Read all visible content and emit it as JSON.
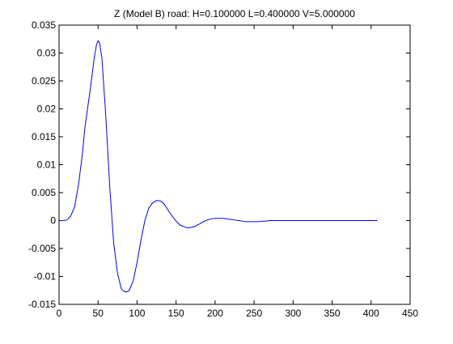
{
  "chart_data": {
    "type": "line",
    "title": "Z (Model B) road: H=0.100000 L=0.400000 V=5.000000",
    "xlabel": "",
    "ylabel": "",
    "xlim": [
      0,
      450
    ],
    "ylim": [
      -0.015,
      0.035
    ],
    "xticks": [
      0,
      50,
      100,
      150,
      200,
      250,
      300,
      350,
      400,
      450
    ],
    "yticks": [
      -0.015,
      -0.01,
      -0.005,
      0,
      0.005,
      0.01,
      0.015,
      0.02,
      0.025,
      0.03,
      0.035
    ],
    "xtick_labels": [
      "0",
      "50",
      "100",
      "150",
      "200",
      "250",
      "300",
      "350",
      "400",
      "450"
    ],
    "ytick_labels": [
      "-0.015",
      "-0.01",
      "-0.005",
      "0",
      "0.005",
      "0.01",
      "0.015",
      "0.02",
      "0.025",
      "0.03",
      "0.035"
    ],
    "grid": false,
    "line_color": "#0000ff",
    "series": [
      {
        "x": [
          1,
          5,
          10,
          15,
          20,
          25,
          30,
          33,
          36,
          40,
          45,
          48,
          50,
          52,
          55,
          60,
          65,
          70,
          75,
          80,
          85,
          88,
          90,
          95,
          100,
          105,
          110,
          115,
          120,
          125,
          130,
          133,
          136,
          140,
          145,
          150,
          155,
          160,
          165,
          170,
          173,
          176,
          180,
          185,
          190,
          195,
          200,
          205,
          210,
          215,
          220,
          225,
          230,
          235,
          240,
          245,
          250,
          255,
          260,
          265,
          270,
          280,
          290,
          300,
          320,
          340,
          360,
          380,
          400,
          408
        ],
        "y": [
          0,
          0,
          0.0001,
          0.0008,
          0.0025,
          0.0065,
          0.012,
          0.0165,
          0.0195,
          0.0235,
          0.029,
          0.0315,
          0.0322,
          0.0318,
          0.029,
          0.0185,
          0.006,
          -0.004,
          -0.0095,
          -0.0123,
          -0.0128,
          -0.0127,
          -0.0125,
          -0.0108,
          -0.0075,
          -0.0035,
          0.0,
          0.0022,
          0.0032,
          0.0036,
          0.0035,
          0.0032,
          0.0027,
          0.0018,
          0.0008,
          -0.0001,
          -0.0008,
          -0.0011,
          -0.0013,
          -0.0012,
          -0.0011,
          -0.0009,
          -0.0006,
          -0.0002,
          0.0001,
          0.0003,
          0.0004,
          0.0004,
          0.0004,
          0.0003,
          0.0002,
          0.0001,
          0.0,
          -0.0001,
          -0.0002,
          -0.0002,
          -0.0002,
          -0.0002,
          -0.0001,
          -0.0001,
          0.0,
          0.0,
          0.0,
          0.0,
          0.0,
          0.0,
          0.0,
          0.0,
          0.0,
          0.0
        ]
      }
    ]
  }
}
